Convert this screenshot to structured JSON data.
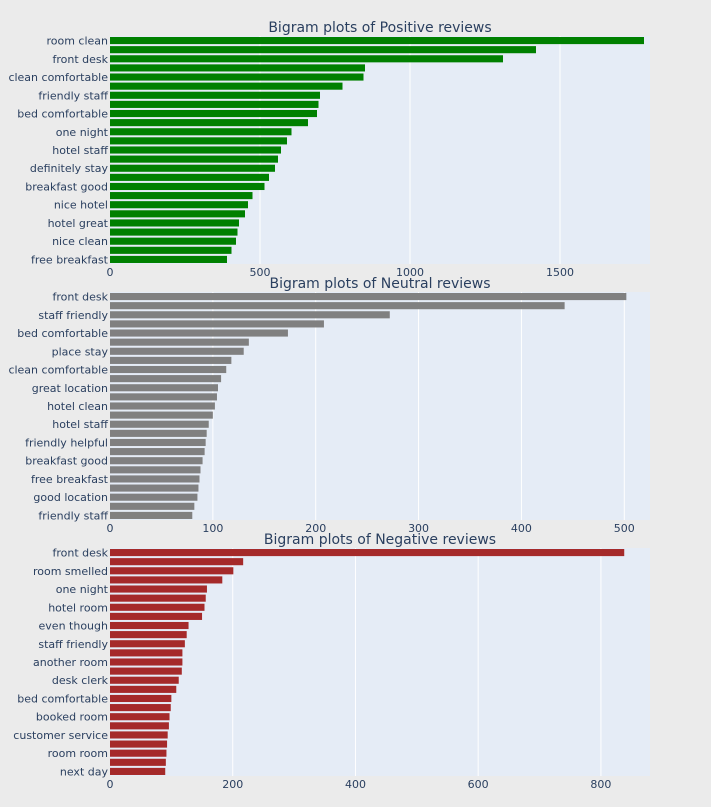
{
  "colors": {
    "page_bg": "#ebebeb",
    "plot_bg": "#e5ecf6",
    "grid": "#ffffff",
    "text": "#2a3f5f",
    "positive": "#008000",
    "neutral": "#808080",
    "negative": "#a52a2a"
  },
  "chart_data": [
    {
      "type": "bar",
      "orientation": "horizontal",
      "title": "Bigram plots of Positive reviews",
      "color": "#008000",
      "xlim": [
        0,
        1800
      ],
      "xticks": [
        0,
        500,
        1000,
        1500
      ],
      "tick_labels": [
        "0",
        "500",
        "1000",
        "1500"
      ],
      "bars": [
        {
          "label": "room clean",
          "value": 1780
        },
        {
          "label": "",
          "value": 1420
        },
        {
          "label": "front desk",
          "value": 1310
        },
        {
          "label": "",
          "value": 850
        },
        {
          "label": "clean comfortable",
          "value": 845
        },
        {
          "label": "",
          "value": 775
        },
        {
          "label": "friendly staff",
          "value": 700
        },
        {
          "label": "",
          "value": 695
        },
        {
          "label": "bed comfortable",
          "value": 690
        },
        {
          "label": "",
          "value": 660
        },
        {
          "label": "one night",
          "value": 605
        },
        {
          "label": "",
          "value": 590
        },
        {
          "label": "hotel staff",
          "value": 570
        },
        {
          "label": "",
          "value": 560
        },
        {
          "label": "definitely stay",
          "value": 550
        },
        {
          "label": "",
          "value": 530
        },
        {
          "label": "breakfast good",
          "value": 515
        },
        {
          "label": "",
          "value": 475
        },
        {
          "label": "nice hotel",
          "value": 460
        },
        {
          "label": "",
          "value": 450
        },
        {
          "label": "hotel great",
          "value": 430
        },
        {
          "label": "",
          "value": 425
        },
        {
          "label": "nice clean",
          "value": 420
        },
        {
          "label": "",
          "value": 405
        },
        {
          "label": "free breakfast",
          "value": 390
        }
      ]
    },
    {
      "type": "bar",
      "orientation": "horizontal",
      "title": "Bigram plots of Neutral reviews",
      "color": "#808080",
      "xlim": [
        0,
        525
      ],
      "xticks": [
        0,
        100,
        200,
        300,
        400,
        500
      ],
      "tick_labels": [
        "0",
        "100",
        "200",
        "300",
        "400",
        "500"
      ],
      "bars": [
        {
          "label": "front desk",
          "value": 502
        },
        {
          "label": "",
          "value": 442
        },
        {
          "label": "staff friendly",
          "value": 272
        },
        {
          "label": "",
          "value": 208
        },
        {
          "label": "bed comfortable",
          "value": 173
        },
        {
          "label": "",
          "value": 135
        },
        {
          "label": "place stay",
          "value": 130
        },
        {
          "label": "",
          "value": 118
        },
        {
          "label": "clean comfortable",
          "value": 113
        },
        {
          "label": "",
          "value": 108
        },
        {
          "label": "great location",
          "value": 105
        },
        {
          "label": "",
          "value": 104
        },
        {
          "label": "hotel clean",
          "value": 102
        },
        {
          "label": "",
          "value": 100
        },
        {
          "label": "hotel staff",
          "value": 96
        },
        {
          "label": "",
          "value": 94
        },
        {
          "label": "friendly helpful",
          "value": 93
        },
        {
          "label": "",
          "value": 92
        },
        {
          "label": "breakfast good",
          "value": 90
        },
        {
          "label": "",
          "value": 88
        },
        {
          "label": "free breakfast",
          "value": 87
        },
        {
          "label": "",
          "value": 86
        },
        {
          "label": "good location",
          "value": 85
        },
        {
          "label": "",
          "value": 82
        },
        {
          "label": "friendly staff",
          "value": 80
        }
      ]
    },
    {
      "type": "bar",
      "orientation": "horizontal",
      "title": "Bigram plots of Negative reviews",
      "color": "#a52a2a",
      "xlim": [
        0,
        880
      ],
      "xticks": [
        0,
        200,
        400,
        600,
        800
      ],
      "tick_labels": [
        "0",
        "200",
        "400",
        "600",
        "800"
      ],
      "bars": [
        {
          "label": "front desk",
          "value": 838
        },
        {
          "label": "",
          "value": 217
        },
        {
          "label": "room smelled",
          "value": 201
        },
        {
          "label": "",
          "value": 183
        },
        {
          "label": "one night",
          "value": 158
        },
        {
          "label": "",
          "value": 156
        },
        {
          "label": "hotel room",
          "value": 154
        },
        {
          "label": "",
          "value": 150
        },
        {
          "label": "even though",
          "value": 128
        },
        {
          "label": "",
          "value": 125
        },
        {
          "label": "staff friendly",
          "value": 122
        },
        {
          "label": "",
          "value": 118
        },
        {
          "label": "another room",
          "value": 118
        },
        {
          "label": "",
          "value": 117
        },
        {
          "label": "desk clerk",
          "value": 112
        },
        {
          "label": "",
          "value": 108
        },
        {
          "label": "bed comfortable",
          "value": 100
        },
        {
          "label": "",
          "value": 99
        },
        {
          "label": "booked room",
          "value": 97
        },
        {
          "label": "",
          "value": 96
        },
        {
          "label": "customer service",
          "value": 94
        },
        {
          "label": "",
          "value": 93
        },
        {
          "label": "room room",
          "value": 92
        },
        {
          "label": "",
          "value": 91
        },
        {
          "label": "next day",
          "value": 90
        }
      ]
    }
  ]
}
